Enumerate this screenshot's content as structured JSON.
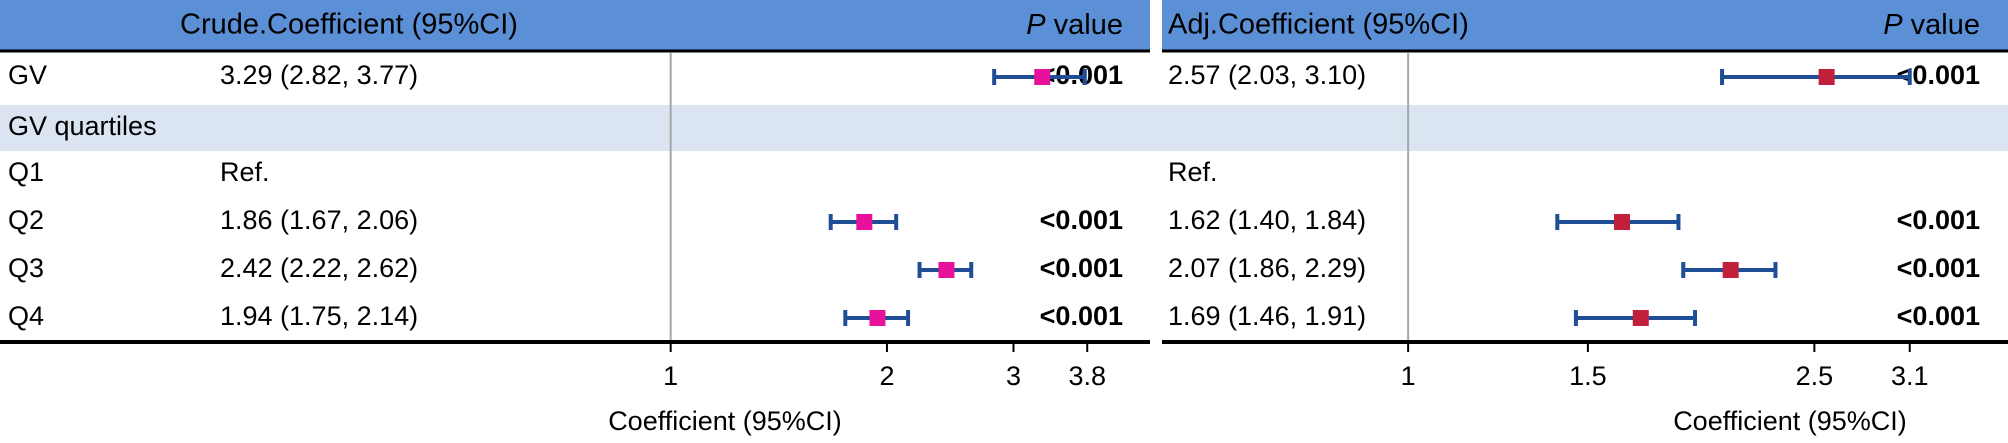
{
  "colors": {
    "header_bg": "#5b8fd6",
    "band_bg": "#dbe5f1",
    "ci_line": "#1f4e96",
    "crude_marker": "#e8119a",
    "adj_marker": "#c21f3c",
    "ref_line": "#a6a6a6",
    "rule": "#000000"
  },
  "rows": [
    {
      "label": "GV",
      "type": "item"
    },
    {
      "label": "GV quartiles",
      "type": "group"
    },
    {
      "label": "Q1",
      "type": "item"
    },
    {
      "label": "Q2",
      "type": "item"
    },
    {
      "label": "Q3",
      "type": "item"
    },
    {
      "label": "Q4",
      "type": "item"
    }
  ],
  "chart_data": [
    {
      "type": "forest",
      "header": {
        "coef_title": "Crude.Coefficient (95%CI)",
        "p_italic": "P",
        "p_rest": " value"
      },
      "xlabel": "Coefficient (95%CI)",
      "xlim": [
        0.42,
        4.5
      ],
      "x_scale": "log",
      "reference_line": 1,
      "ticks": [
        {
          "value": 1,
          "label": "1"
        },
        {
          "value": 2,
          "label": "2"
        },
        {
          "value": 3,
          "label": "3"
        },
        {
          "value": 3.8,
          "label": "3.8"
        }
      ],
      "entries": [
        {
          "row": 0,
          "text": "3.29 (2.82, 3.77)",
          "est": 3.29,
          "lo": 2.82,
          "hi": 3.77,
          "p": "<0.001"
        },
        {
          "row": 2,
          "text": "Ref.",
          "est": null,
          "lo": null,
          "hi": null,
          "p": ""
        },
        {
          "row": 3,
          "text": "1.86 (1.67, 2.06)",
          "est": 1.86,
          "lo": 1.67,
          "hi": 2.06,
          "p": "<0.001"
        },
        {
          "row": 4,
          "text": "2.42 (2.22, 2.62)",
          "est": 2.42,
          "lo": 2.22,
          "hi": 2.62,
          "p": "<0.001"
        },
        {
          "row": 5,
          "text": "1.94 (1.75, 2.14)",
          "est": 1.94,
          "lo": 1.75,
          "hi": 2.14,
          "p": "<0.001"
        }
      ]
    },
    {
      "type": "forest",
      "header": {
        "coef_title": "Adj.Coefficient (95%CI)",
        "p_italic": "P",
        "p_rest": " value"
      },
      "xlabel": "Coefficient (95%CI)",
      "xlim": [
        0.7,
        3.8
      ],
      "x_scale": "log",
      "reference_line": 1,
      "ticks": [
        {
          "value": 1,
          "label": "1"
        },
        {
          "value": 1.5,
          "label": "1.5"
        },
        {
          "value": 2.5,
          "label": "2.5"
        },
        {
          "value": 3.1,
          "label": "3.1"
        }
      ],
      "entries": [
        {
          "row": 0,
          "text": "2.57 (2.03, 3.10)",
          "est": 2.57,
          "lo": 2.03,
          "hi": 3.1,
          "p": "<0.001"
        },
        {
          "row": 2,
          "text": "Ref.",
          "est": null,
          "lo": null,
          "hi": null,
          "p": ""
        },
        {
          "row": 3,
          "text": "1.62 (1.40, 1.84)",
          "est": 1.62,
          "lo": 1.4,
          "hi": 1.84,
          "p": "<0.001"
        },
        {
          "row": 4,
          "text": "2.07 (1.86, 2.29)",
          "est": 2.07,
          "lo": 1.86,
          "hi": 2.29,
          "p": "<0.001"
        },
        {
          "row": 5,
          "text": "1.69 (1.46, 1.91)",
          "est": 1.69,
          "lo": 1.46,
          "hi": 1.91,
          "p": "<0.001"
        }
      ]
    }
  ]
}
